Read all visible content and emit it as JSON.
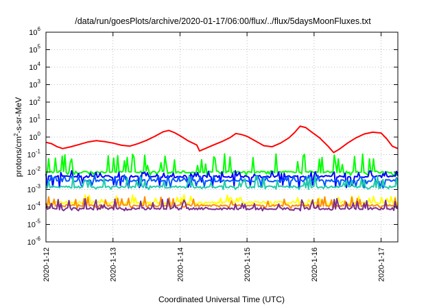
{
  "chart_data": {
    "type": "line",
    "title": "/data/run/goesPlots/archive/2020-01-17/06:00/flux/../flux/5daysMoonFluxes.txt",
    "xlabel": "Coordinated Universal Time (UTC)",
    "ylabel": {
      "base": "protons/cm",
      "sup": "2",
      "rest": "-s-sr-MeV"
    },
    "ylim": [
      1e-06,
      1000000.0
    ],
    "yscale": "log",
    "xlim": [
      "2020-01-12T00:00",
      "2020-01-17T06:00"
    ],
    "grid": true,
    "x_ticks": [
      "2020-1-12",
      "2020-1-13",
      "2020-1-14",
      "2020-1-15",
      "2020-1-16",
      "2020-1-17"
    ],
    "y_ticks": [
      {
        "base": "10",
        "exp": "-6"
      },
      {
        "base": "10",
        "exp": "-5"
      },
      {
        "base": "10",
        "exp": "-4"
      },
      {
        "base": "10",
        "exp": "-3"
      },
      {
        "base": "10",
        "exp": "-2"
      },
      {
        "base": "10",
        "exp": "-1"
      },
      {
        "base": "10",
        "exp": "0"
      },
      {
        "base": "10",
        "exp": "1"
      },
      {
        "base": "10",
        "exp": "2"
      },
      {
        "base": "10",
        "exp": "3"
      },
      {
        "base": "10",
        "exp": "4"
      },
      {
        "base": "10",
        "exp": "5"
      },
      {
        "base": "10",
        "exp": "6"
      }
    ],
    "series": [
      {
        "color": "#ff0000",
        "points": [
          [
            "2020-01-12T00:00",
            0.5
          ],
          [
            "2020-01-12T02:00",
            0.42
          ],
          [
            "2020-01-12T04:00",
            0.28
          ],
          [
            "2020-01-12T06:00",
            0.22
          ],
          [
            "2020-01-12T09:00",
            0.28
          ],
          [
            "2020-01-12T12:00",
            0.38
          ],
          [
            "2020-01-12T15:00",
            0.52
          ],
          [
            "2020-01-12T18:00",
            0.62
          ],
          [
            "2020-01-12T21:00",
            0.55
          ],
          [
            "2020-01-13T00:00",
            0.45
          ],
          [
            "2020-01-13T03:00",
            0.34
          ],
          [
            "2020-01-13T06:00",
            0.3
          ],
          [
            "2020-01-13T09:00",
            0.42
          ],
          [
            "2020-01-13T12:00",
            0.65
          ],
          [
            "2020-01-13T15:00",
            1.1
          ],
          [
            "2020-01-13T18:00",
            2.0
          ],
          [
            "2020-01-13T20:00",
            2.4
          ],
          [
            "2020-01-13T22:00",
            1.8
          ],
          [
            "2020-01-14T00:00",
            1.2
          ],
          [
            "2020-01-14T03:00",
            0.6
          ],
          [
            "2020-01-14T06:00",
            0.35
          ],
          [
            "2020-01-14T07:00",
            0.16
          ],
          [
            "2020-01-14T09:00",
            0.22
          ],
          [
            "2020-01-14T12:00",
            0.35
          ],
          [
            "2020-01-14T15:00",
            0.55
          ],
          [
            "2020-01-14T18:00",
            0.95
          ],
          [
            "2020-01-14T20:00",
            1.6
          ],
          [
            "2020-01-14T22:00",
            1.4
          ],
          [
            "2020-01-15T00:00",
            1.1
          ],
          [
            "2020-01-15T03:00",
            0.6
          ],
          [
            "2020-01-15T06:00",
            0.32
          ],
          [
            "2020-01-15T09:00",
            0.28
          ],
          [
            "2020-01-15T12:00",
            0.45
          ],
          [
            "2020-01-15T15:00",
            0.9
          ],
          [
            "2020-01-15T17:00",
            1.8
          ],
          [
            "2020-01-15T19:00",
            4.2
          ],
          [
            "2020-01-15T21:00",
            3.5
          ],
          [
            "2020-01-15T23:00",
            2.0
          ],
          [
            "2020-01-16T02:00",
            0.9
          ],
          [
            "2020-01-16T05:00",
            0.3
          ],
          [
            "2020-01-16T07:00",
            0.13
          ],
          [
            "2020-01-16T09:00",
            0.2
          ],
          [
            "2020-01-16T12:00",
            0.45
          ],
          [
            "2020-01-16T15:00",
            0.9
          ],
          [
            "2020-01-16T18:00",
            1.5
          ],
          [
            "2020-01-16T21:00",
            1.9
          ],
          [
            "2020-01-17T00:00",
            1.7
          ],
          [
            "2020-01-17T02:00",
            0.8
          ],
          [
            "2020-01-17T04:00",
            0.3
          ],
          [
            "2020-01-17T06:00",
            0.22
          ]
        ]
      },
      {
        "color": "#00ff00",
        "baseline": 0.01,
        "min": 0.006,
        "max": 0.11
      },
      {
        "color": "#0000ff",
        "baseline": 0.0055,
        "min": 0.0012,
        "max": 0.012
      },
      {
        "color": "#0055ff",
        "baseline": 0.0032,
        "min": 0.0012,
        "max": 0.007
      },
      {
        "color": "#22ccaa",
        "baseline": 0.0014,
        "min": 0.001,
        "max": 0.006
      },
      {
        "color": "#ffff00",
        "baseline": 0.00018,
        "min": 0.00011,
        "max": 0.0005
      },
      {
        "color": "#ff8c00",
        "baseline": 0.00012,
        "min": 8e-05,
        "max": 0.0004
      },
      {
        "color": "#7b2d8e",
        "baseline": 8e-05,
        "min": 6e-05,
        "max": 0.0003
      }
    ]
  }
}
